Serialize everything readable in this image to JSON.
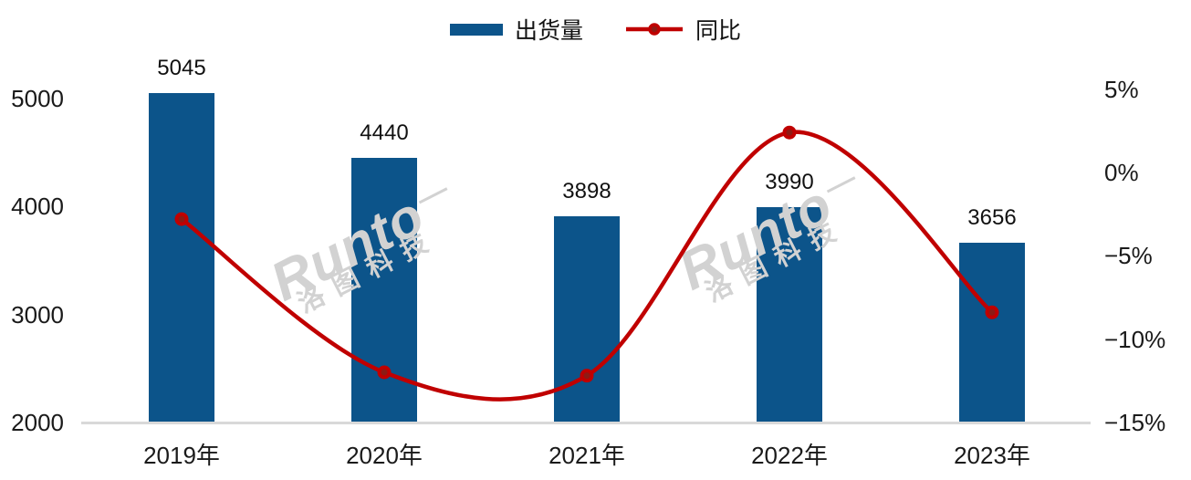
{
  "colors": {
    "bar": "#0c548a",
    "line": "#c00000",
    "marker_fill": "#8e1a14",
    "axis_line": "#d9d9d9",
    "text": "#1a1a1a",
    "watermark": "#d2d2d2"
  },
  "legend": {
    "items": [
      {
        "label": "出货量",
        "type": "bar"
      },
      {
        "label": "同比",
        "type": "line"
      }
    ]
  },
  "watermark": {
    "latin": "Runto",
    "cjk": "洛图科技",
    "instances": 2
  },
  "chart_data": {
    "type": "combo",
    "title": "",
    "grid": false,
    "legend_position": "top",
    "categories": [
      "2019年",
      "2020年",
      "2021年",
      "2022年",
      "2023年"
    ],
    "series": [
      {
        "name": "出货量",
        "type": "bar",
        "axis": "left",
        "values": [
          5045,
          4440,
          3898,
          3990,
          3656
        ]
      },
      {
        "name": "同比",
        "type": "line",
        "axis": "right",
        "values_percent": [
          -2.8,
          -12.0,
          -12.2,
          2.4,
          -8.4
        ]
      }
    ],
    "left_axis": {
      "min": 2000,
      "max": 5000,
      "ticks": [
        {
          "label": "5000",
          "value": 5000
        },
        {
          "label": "4000",
          "value": 4000
        },
        {
          "label": "3000",
          "value": 3000
        },
        {
          "label": "2000",
          "value": 2000
        }
      ]
    },
    "right_axis": {
      "min": -15,
      "max": 5,
      "ticks": [
        {
          "label": "5%",
          "value": 5
        },
        {
          "label": "0%",
          "value": 0
        },
        {
          "label": "−5%",
          "value": -5
        },
        {
          "label": "−10%",
          "value": -10
        },
        {
          "label": "−15%",
          "value": -15
        }
      ]
    }
  }
}
